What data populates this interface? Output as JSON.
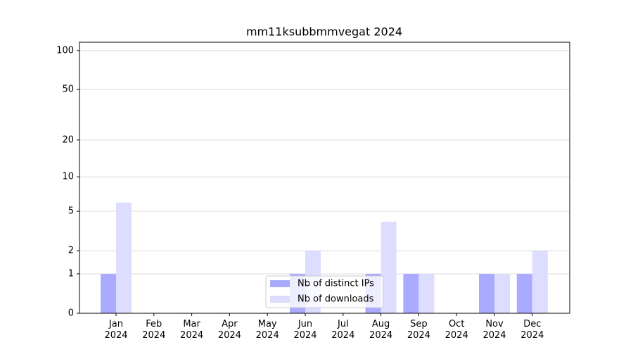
{
  "chart_data": {
    "type": "bar",
    "title": "mm11ksubbmmvegat 2024",
    "categories": [
      "Jan\n2024",
      "Feb\n2024",
      "Mar\n2024",
      "Apr\n2024",
      "May\n2024",
      "Jun\n2024",
      "Jul\n2024",
      "Aug\n2024",
      "Sep\n2024",
      "Oct\n2024",
      "Nov\n2024",
      "Dec\n2024"
    ],
    "series": [
      {
        "name": "Nb of distinct IPs",
        "color": "#aaaaff",
        "values": [
          1,
          0,
          0,
          0,
          0,
          1,
          0,
          1,
          1,
          0,
          1,
          1
        ]
      },
      {
        "name": "Nb of downloads",
        "color": "#ddddff",
        "values": [
          6,
          0,
          0,
          0,
          0,
          2,
          0,
          4,
          1,
          0,
          1,
          2
        ]
      }
    ],
    "yscale": "log1p",
    "ylim": [
      0,
      116
    ],
    "yticks": [
      0,
      1,
      2,
      5,
      10,
      20,
      50,
      100
    ],
    "grid": true,
    "legend": "lower center"
  }
}
